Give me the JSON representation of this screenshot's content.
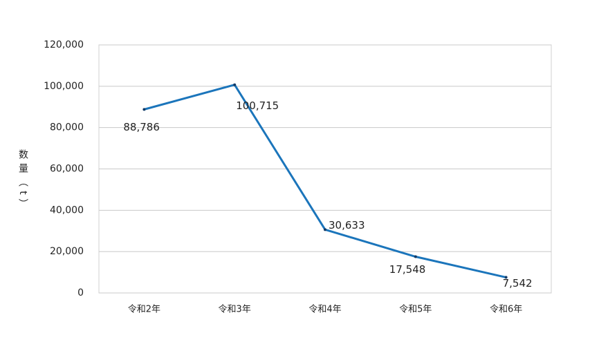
{
  "chart_data": {
    "type": "line",
    "y_label": "数量（t）",
    "categories": [
      "令和2年",
      "令和3年",
      "令和4年",
      "令和5年",
      "令和6年"
    ],
    "series": [
      {
        "color": "#1b75bb",
        "values": [
          88786,
          100715,
          30633,
          17548,
          7542
        ],
        "value_labels": [
          "88,786",
          "100,715",
          "30,633",
          "17,548",
          "7,542"
        ]
      }
    ],
    "ylim": [
      0,
      120000
    ],
    "yticks": [
      0,
      {
        "value": 20000,
        "label": "20,000"
      },
      {
        "value": 40000,
        "label": "40,000"
      },
      {
        "value": 60000,
        "label": "60,000"
      },
      {
        "value": 80000,
        "label": "80,000"
      },
      {
        "value": 100000,
        "label": "100,000"
      },
      {
        "value": 120000,
        "label": "120,000"
      }
    ],
    "grid": true
  }
}
